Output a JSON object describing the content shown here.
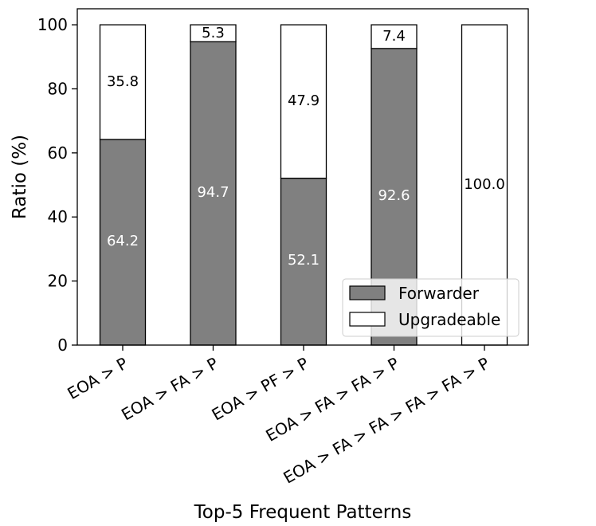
{
  "chart_data": {
    "type": "bar",
    "stacked": true,
    "categories": [
      "EOA > P",
      "EOA > FA > P",
      "EOA > PF > P",
      "EOA > FA > FA > P",
      "EOA > FA > FA > FA > FA > P"
    ],
    "series": [
      {
        "name": "Forwarder",
        "values": [
          64.2,
          94.7,
          52.1,
          92.6,
          0
        ],
        "color": "#808080"
      },
      {
        "name": "Upgradeable",
        "values": [
          35.8,
          5.3,
          47.9,
          7.4,
          100.0
        ],
        "color": "#ffffff"
      }
    ],
    "data_labels": [
      {
        "series": "Forwarder",
        "text": [
          "64.2",
          "94.7",
          "52.1",
          "92.6",
          ""
        ]
      },
      {
        "series": "Upgradeable",
        "text": [
          "35.8",
          "5.3",
          "47.9",
          "7.4",
          "100.0"
        ]
      }
    ],
    "xlabel": "Top-5 Frequent Patterns",
    "ylabel": "Ratio (%)",
    "ylim": [
      0,
      105
    ],
    "yticks": [
      0,
      20,
      40,
      60,
      80,
      100
    ],
    "grid": false,
    "legend_position": "lower-right"
  }
}
